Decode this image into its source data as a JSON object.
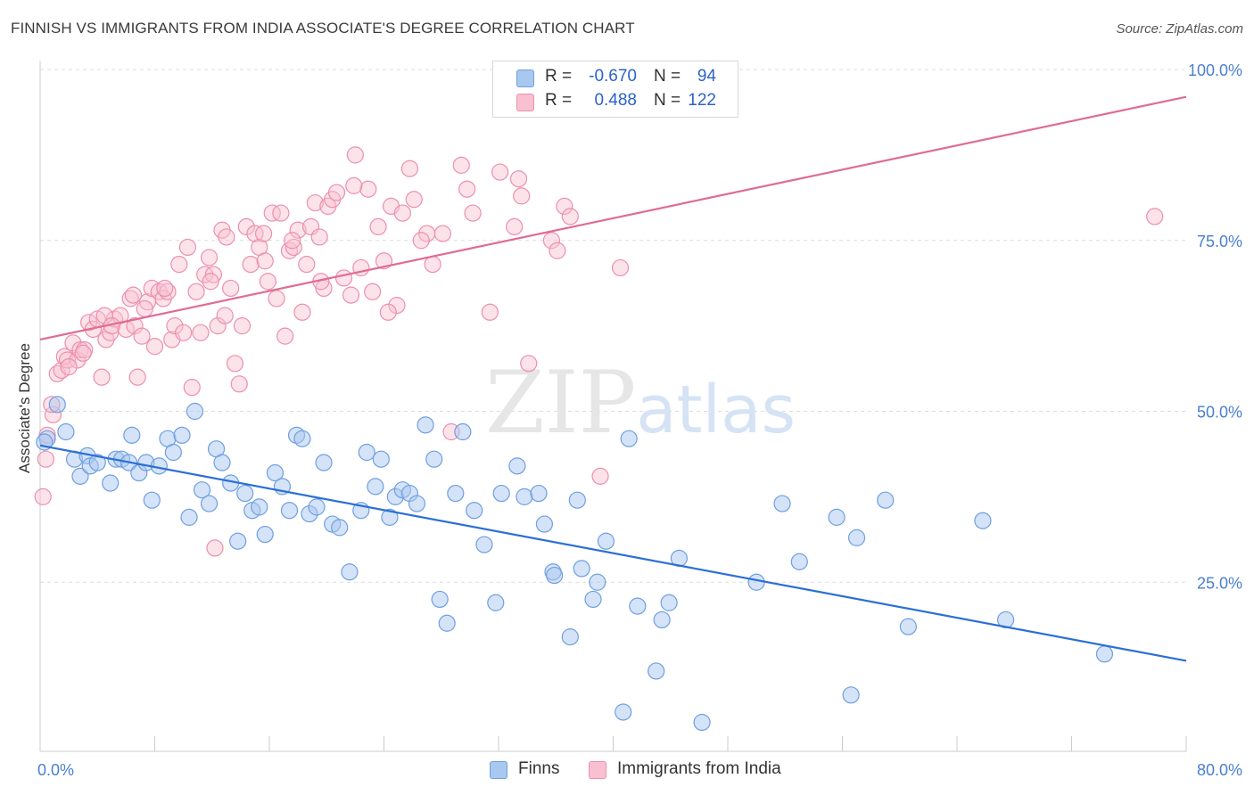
{
  "title": "FINNISH VS IMMIGRANTS FROM INDIA ASSOCIATE'S DEGREE CORRELATION CHART",
  "source": "Source: ZipAtlas.com",
  "watermark": "ZIPatlas",
  "legend": {
    "rows": [
      {
        "r_label": "R =",
        "r_value": "-0.670",
        "n_label": "N =",
        "n_value": "94",
        "color": "#a9c8f0",
        "border": "#6f9fe0"
      },
      {
        "r_label": "R =",
        "r_value": "0.488",
        "n_label": "N =",
        "n_value": "122",
        "color": "#f8c0d1",
        "border": "#ec8fae"
      }
    ]
  },
  "bottom_legend": [
    {
      "label": "Finns",
      "color": "#a9c8f0",
      "border": "#6f9fe0"
    },
    {
      "label": "Immigrants from India",
      "color": "#f8c0d1",
      "border": "#ec8fae"
    }
  ],
  "chart_data": {
    "type": "scatter",
    "title": "FINNISH VS IMMIGRANTS FROM INDIA ASSOCIATE'S DEGREE CORRELATION CHART",
    "xlabel": "",
    "ylabel": "Associate's Degree",
    "xlim": [
      0,
      80
    ],
    "ylim": [
      0,
      100
    ],
    "x_tick_labels": [
      "0.0%",
      "80.0%"
    ],
    "y_tick_labels": [
      "25.0%",
      "50.0%",
      "75.0%",
      "100.0%"
    ],
    "y_ticks": [
      25,
      50,
      75,
      100
    ],
    "grid": true,
    "legend_position": "top-center",
    "colors": {
      "finns": "#6f9fe0",
      "finns_fill": "#a9c8f0",
      "finns_line": "#2b6fd6",
      "india": "#ec8fae",
      "india_fill": "#f8c0d1",
      "india_line": "#e06b95",
      "axis_text": "#4a7fd1"
    },
    "series": [
      {
        "name": "Finns",
        "trend": {
          "x": [
            0,
            80
          ],
          "y": [
            45.0,
            13.5
          ]
        },
        "points": [
          [
            0.5,
            46
          ],
          [
            1.2,
            51
          ],
          [
            1.8,
            47
          ],
          [
            2.4,
            43
          ],
          [
            2.8,
            40.5
          ],
          [
            3.3,
            43.5
          ],
          [
            3.5,
            42
          ],
          [
            4,
            42.5
          ],
          [
            4.9,
            39.5
          ],
          [
            5.3,
            43
          ],
          [
            5.7,
            43
          ],
          [
            6.2,
            42.5
          ],
          [
            6.4,
            46.5
          ],
          [
            6.9,
            41
          ],
          [
            7.4,
            42.5
          ],
          [
            7.8,
            37
          ],
          [
            8.3,
            42
          ],
          [
            8.9,
            46
          ],
          [
            9.3,
            44
          ],
          [
            9.9,
            46.5
          ],
          [
            10.4,
            34.5
          ],
          [
            10.8,
            50
          ],
          [
            11.3,
            38.5
          ],
          [
            11.8,
            36.5
          ],
          [
            12.3,
            44.5
          ],
          [
            12.7,
            42.5
          ],
          [
            13.3,
            39.5
          ],
          [
            13.8,
            31
          ],
          [
            14.3,
            38
          ],
          [
            14.8,
            35.5
          ],
          [
            15.3,
            36
          ],
          [
            15.7,
            32
          ],
          [
            16.4,
            41
          ],
          [
            16.9,
            39
          ],
          [
            17.4,
            35.5
          ],
          [
            17.9,
            46.5
          ],
          [
            18.3,
            46
          ],
          [
            18.8,
            35
          ],
          [
            19.3,
            36
          ],
          [
            19.8,
            42.5
          ],
          [
            20.4,
            33.5
          ],
          [
            20.9,
            33
          ],
          [
            21.6,
            26.5
          ],
          [
            22.4,
            35.5
          ],
          [
            22.8,
            44
          ],
          [
            23.4,
            39
          ],
          [
            23.8,
            43
          ],
          [
            24.4,
            34.5
          ],
          [
            24.8,
            37.5
          ],
          [
            25.3,
            38.5
          ],
          [
            25.8,
            38
          ],
          [
            26.3,
            36.5
          ],
          [
            26.9,
            48
          ],
          [
            27.5,
            43
          ],
          [
            27.9,
            22.5
          ],
          [
            28.4,
            19
          ],
          [
            29,
            38
          ],
          [
            29.5,
            47
          ],
          [
            30.3,
            35.5
          ],
          [
            31,
            30.5
          ],
          [
            31.8,
            22
          ],
          [
            32.2,
            38
          ],
          [
            33.3,
            42
          ],
          [
            33.8,
            37.5
          ],
          [
            34.8,
            38
          ],
          [
            35.2,
            33.5
          ],
          [
            35.8,
            26.5
          ],
          [
            35.9,
            26
          ],
          [
            37,
            17
          ],
          [
            37.5,
            37
          ],
          [
            37.8,
            27
          ],
          [
            38.6,
            22.5
          ],
          [
            38.9,
            25
          ],
          [
            39.5,
            31
          ],
          [
            40.7,
            6
          ],
          [
            41.1,
            46
          ],
          [
            41.7,
            21.5
          ],
          [
            43,
            12
          ],
          [
            43.4,
            19.5
          ],
          [
            43.9,
            22
          ],
          [
            44.6,
            28.5
          ],
          [
            46.2,
            4.5
          ],
          [
            50,
            25
          ],
          [
            51.8,
            36.5
          ],
          [
            53,
            28
          ],
          [
            55.6,
            34.5
          ],
          [
            56.6,
            8.5
          ],
          [
            57,
            31.5
          ],
          [
            59,
            37
          ],
          [
            60.6,
            18.5
          ],
          [
            65.8,
            34
          ],
          [
            67.4,
            19.5
          ],
          [
            74.3,
            14.5
          ],
          [
            0.3,
            45.5
          ]
        ]
      },
      {
        "name": "Immigrants from India",
        "trend": {
          "x": [
            0,
            80
          ],
          "y": [
            60.5,
            96.0
          ]
        },
        "points": [
          [
            0.2,
            37.5
          ],
          [
            0.4,
            43
          ],
          [
            0.5,
            46.5
          ],
          [
            0.9,
            49.5
          ],
          [
            1.2,
            55.5
          ],
          [
            1.5,
            56
          ],
          [
            1.7,
            58
          ],
          [
            1.9,
            57.5
          ],
          [
            2.3,
            60
          ],
          [
            2.6,
            57.5
          ],
          [
            2.8,
            59
          ],
          [
            3.1,
            59
          ],
          [
            3.4,
            63
          ],
          [
            3.7,
            62
          ],
          [
            4,
            63.5
          ],
          [
            4.3,
            55
          ],
          [
            4.6,
            60.5
          ],
          [
            4.9,
            61.5
          ],
          [
            5.2,
            63.5
          ],
          [
            5.6,
            64
          ],
          [
            6,
            62
          ],
          [
            6.3,
            66.5
          ],
          [
            6.6,
            62.5
          ],
          [
            6.8,
            55
          ],
          [
            7.1,
            61
          ],
          [
            7.5,
            66
          ],
          [
            7.8,
            68
          ],
          [
            8,
            59.5
          ],
          [
            8.3,
            67.5
          ],
          [
            8.6,
            66.5
          ],
          [
            8.9,
            67.5
          ],
          [
            9.2,
            60.5
          ],
          [
            9.4,
            62.5
          ],
          [
            9.7,
            71.5
          ],
          [
            10,
            61.5
          ],
          [
            10.3,
            74
          ],
          [
            10.6,
            53.5
          ],
          [
            10.9,
            67.5
          ],
          [
            11.2,
            61.5
          ],
          [
            11.5,
            70
          ],
          [
            11.8,
            72.5
          ],
          [
            12.1,
            70
          ],
          [
            12.4,
            62.5
          ],
          [
            12.7,
            76.5
          ],
          [
            13,
            75.5
          ],
          [
            13.3,
            68
          ],
          [
            13.6,
            57
          ],
          [
            13.9,
            54
          ],
          [
            14.1,
            62.5
          ],
          [
            14.4,
            77
          ],
          [
            14.7,
            71.5
          ],
          [
            15,
            76
          ],
          [
            15.3,
            74
          ],
          [
            15.6,
            76
          ],
          [
            15.9,
            69
          ],
          [
            16.2,
            79
          ],
          [
            16.5,
            66.5
          ],
          [
            16.8,
            79
          ],
          [
            17.1,
            61
          ],
          [
            17.4,
            73.5
          ],
          [
            17.7,
            74
          ],
          [
            18,
            76.5
          ],
          [
            18.3,
            64.5
          ],
          [
            18.6,
            71.5
          ],
          [
            18.9,
            77
          ],
          [
            19.2,
            80.5
          ],
          [
            19.5,
            75.5
          ],
          [
            19.8,
            68
          ],
          [
            20.1,
            80
          ],
          [
            20.4,
            81
          ],
          [
            20.7,
            82
          ],
          [
            21.2,
            69.5
          ],
          [
            21.7,
            67
          ],
          [
            22,
            87.5
          ],
          [
            22.4,
            71
          ],
          [
            22.9,
            82.5
          ],
          [
            23.2,
            67.5
          ],
          [
            23.6,
            77
          ],
          [
            24,
            72
          ],
          [
            24.5,
            80
          ],
          [
            24.9,
            65.5
          ],
          [
            25.3,
            79
          ],
          [
            25.8,
            85.5
          ],
          [
            26.1,
            81
          ],
          [
            27,
            76
          ],
          [
            27.4,
            71.5
          ],
          [
            28.1,
            76
          ],
          [
            28.7,
            47
          ],
          [
            29.4,
            86
          ],
          [
            29.8,
            82.5
          ],
          [
            30.2,
            79
          ],
          [
            31.4,
            64.5
          ],
          [
            32.1,
            85
          ],
          [
            33.1,
            77
          ],
          [
            33.4,
            84
          ],
          [
            33.6,
            81.5
          ],
          [
            34.1,
            57
          ],
          [
            35.7,
            75
          ],
          [
            36.1,
            73.5
          ],
          [
            36.6,
            80
          ],
          [
            37,
            78.5
          ],
          [
            39.1,
            40.5
          ],
          [
            40.5,
            71
          ],
          [
            77.8,
            78.5
          ],
          [
            0.8,
            51
          ],
          [
            2,
            56.5
          ],
          [
            3,
            58.5
          ],
          [
            4.5,
            64
          ],
          [
            5,
            62.5
          ],
          [
            6.5,
            67
          ],
          [
            7.3,
            65
          ],
          [
            8.7,
            68
          ],
          [
            11.9,
            69
          ],
          [
            12.9,
            64
          ],
          [
            15.7,
            72
          ],
          [
            17.6,
            75
          ],
          [
            19.6,
            69
          ],
          [
            21.9,
            83
          ],
          [
            24.3,
            64.5
          ],
          [
            26.6,
            75
          ],
          [
            12.2,
            30
          ]
        ]
      }
    ]
  }
}
